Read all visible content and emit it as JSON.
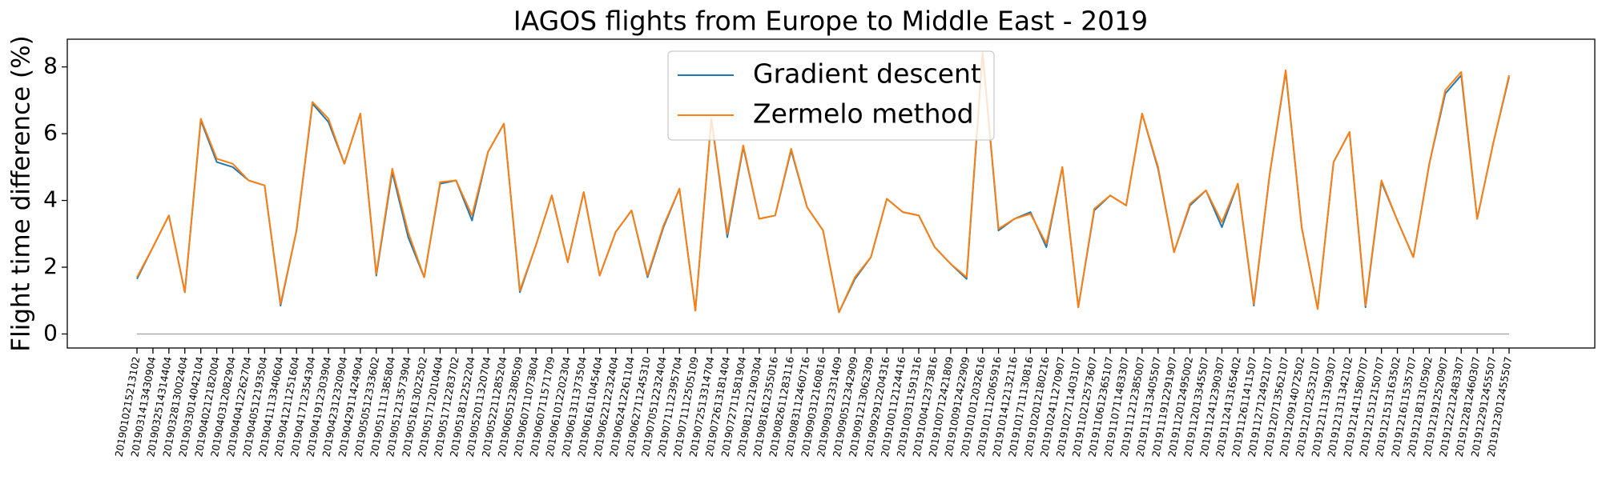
{
  "chart_data": {
    "type": "line",
    "title": "IAGOS flights from Europe to Middle East - 2019",
    "y_label": "Flight time difference (%)",
    "categories": [
      "2019010215213102",
      "2019031413430904",
      "2019032514314404",
      "2019032813002404",
      "2019033014042104",
      "2019040212182004",
      "2019040312082904",
      "2019040412262704",
      "2019040512193504",
      "2019041113340604",
      "2019041211251604",
      "2019041712354304",
      "2019041912303904",
      "2019042312320904",
      "2019042911424904",
      "2019050512333602",
      "2019051111385804",
      "2019051213573904",
      "2019051613022502",
      "2019051712010404",
      "2019051712283702",
      "2019051812252204",
      "2019052011320704",
      "2019052211285204",
      "2019060512380509",
      "2019060711073804",
      "2019060711571709",
      "2019061012202304",
      "2019061311373504",
      "2019061611045404",
      "2019062212232404",
      "2019062412261104",
      "2019062711245310",
      "2019070512232404",
      "2019071112395704",
      "2019071112505109",
      "2019072513314704",
      "2019072613181404",
      "2019072711581904",
      "2019081212190304",
      "2019081612355016",
      "2019082611283116",
      "2019083112460716",
      "2019090312160816",
      "2019090312331409",
      "2019090512342909",
      "2019091213062309",
      "2019092912204316",
      "2019100112124416",
      "2019100311591316",
      "2019100412373816",
      "2019100712421809",
      "2019100912422909",
      "2019101012032616",
      "2019101112065916",
      "2019101412132116",
      "2019101711130816",
      "2019102012180216",
      "2019102411270907",
      "2019102711403107",
      "2019110212573607",
      "2019110612365107",
      "2019110711483307",
      "2019111212385007",
      "2019111313405507",
      "2019111912291907",
      "2019112012495002",
      "2019112013345507",
      "2019112412390307",
      "2019112413165402",
      "2019112611411507",
      "2019112712492107",
      "2019120713562107",
      "2019120914072502",
      "2019121012532107",
      "2019121113190307",
      "2019121311342102",
      "2019121411580707",
      "2019121512150707",
      "2019121513163502",
      "2019121611535707",
      "2019121813105902",
      "2019121912520907",
      "2019122212483307",
      "2019122812460307",
      "2019122912455507",
      "2019123012455507"
    ],
    "series": [
      {
        "name": "Gradient descent",
        "color": "#1f77b4",
        "values": [
          1.65,
          2.6,
          3.55,
          1.25,
          6.4,
          5.15,
          5.0,
          4.6,
          4.45,
          0.85,
          3.1,
          6.9,
          6.35,
          5.1,
          6.6,
          1.75,
          4.85,
          2.9,
          1.7,
          4.5,
          4.6,
          3.4,
          5.45,
          6.3,
          1.25,
          2.65,
          4.15,
          2.15,
          4.25,
          1.75,
          3.05,
          3.7,
          1.7,
          3.2,
          4.35,
          0.7,
          6.45,
          2.9,
          5.6,
          3.45,
          3.55,
          5.5,
          3.8,
          3.1,
          0.65,
          1.65,
          2.3,
          4.05,
          3.65,
          3.55,
          2.6,
          2.1,
          1.65,
          8.4,
          3.1,
          3.45,
          3.65,
          2.6,
          5.0,
          0.8,
          3.7,
          4.15,
          3.85,
          6.6,
          4.95,
          2.45,
          3.85,
          4.3,
          3.2,
          4.5,
          0.85,
          4.8,
          7.85,
          3.2,
          0.75,
          5.15,
          6.05,
          0.8,
          4.55,
          3.4,
          2.3,
          5.1,
          7.2,
          7.75,
          3.45,
          5.7,
          7.7
        ]
      },
      {
        "name": "Zermelo method",
        "color": "#ff7f0e",
        "values": [
          1.7,
          2.6,
          3.55,
          1.25,
          6.45,
          5.25,
          5.1,
          4.6,
          4.45,
          0.9,
          3.1,
          6.95,
          6.45,
          5.1,
          6.6,
          1.8,
          4.95,
          3.05,
          1.7,
          4.55,
          4.6,
          3.55,
          5.45,
          6.3,
          1.3,
          2.65,
          4.15,
          2.15,
          4.25,
          1.75,
          3.05,
          3.7,
          1.75,
          3.25,
          4.35,
          0.7,
          6.45,
          3.0,
          5.65,
          3.45,
          3.55,
          5.55,
          3.8,
          3.1,
          0.65,
          1.7,
          2.3,
          4.05,
          3.65,
          3.55,
          2.6,
          2.1,
          1.7,
          8.45,
          3.15,
          3.45,
          3.6,
          2.7,
          5.0,
          0.8,
          3.75,
          4.15,
          3.85,
          6.6,
          5.0,
          2.45,
          3.9,
          4.3,
          3.35,
          4.5,
          0.9,
          4.8,
          7.9,
          3.2,
          0.75,
          5.15,
          6.05,
          0.85,
          4.6,
          3.4,
          2.3,
          5.1,
          7.3,
          7.85,
          3.45,
          5.7,
          7.75
        ]
      }
    ],
    "reference_line": 0,
    "ylim": [
      -0.42,
      8.83
    ],
    "yticks": [
      0,
      2,
      4,
      6,
      8
    ],
    "legend": "upper center"
  }
}
